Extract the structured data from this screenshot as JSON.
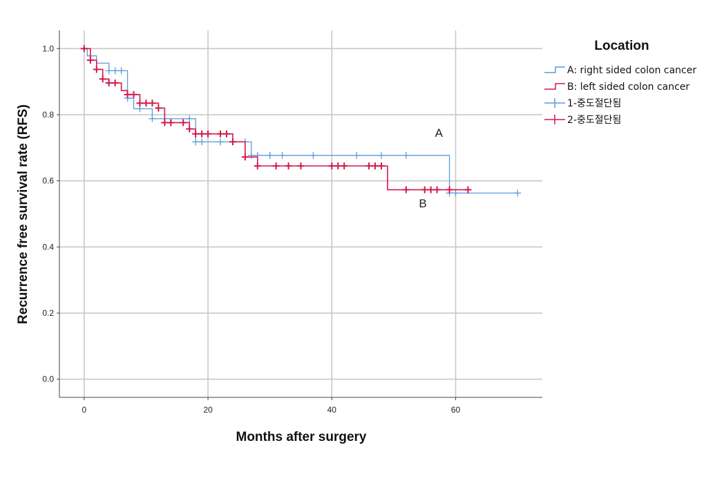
{
  "chart_data": {
    "type": "line",
    "title": "",
    "xlabel": "Months after surgery",
    "ylabel": "Recurrence free survival rate (RFS)",
    "xlim": [
      -4,
      74
    ],
    "ylim": [
      -0.055,
      1.055
    ],
    "x_ticks": [
      0,
      20,
      40,
      60
    ],
    "x_tick_labels": [
      "0",
      "20",
      "40",
      "60"
    ],
    "y_ticks": [
      0.0,
      0.2,
      0.4,
      0.6,
      0.8,
      1.0
    ],
    "y_tick_labels": [
      "0.0",
      "0.2",
      "0.4",
      "0.6",
      "0.8",
      "1.0"
    ],
    "grid": true,
    "legend": {
      "title": "Location",
      "position": "right",
      "entries": [
        {
          "label": "A: right sided colon cancer",
          "kind": "step",
          "color": "#5b9ad8"
        },
        {
          "label": "B: left sided colon cancer",
          "kind": "step",
          "color": "#d3174a"
        },
        {
          "label": "1-중도절단됨",
          "kind": "censor",
          "color": "#5b9ad8"
        },
        {
          "label": "2-중도절단됨",
          "kind": "censor",
          "color": "#d3174a"
        }
      ]
    },
    "annotations": [
      {
        "text": "A",
        "x": 57.3,
        "y": 0.733
      },
      {
        "text": "B",
        "x": 54.7,
        "y": 0.52
      }
    ],
    "series": [
      {
        "name": "A: right sided colon cancer",
        "color": "#5b9ad8",
        "steps": [
          [
            0,
            1.0
          ],
          [
            0.5,
            0.978
          ],
          [
            2,
            0.956
          ],
          [
            4,
            0.933
          ],
          [
            7,
            0.85
          ],
          [
            8,
            0.818
          ],
          [
            11,
            0.788
          ],
          [
            18,
            0.718
          ],
          [
            27,
            0.677
          ],
          [
            59,
            0.563
          ],
          [
            70,
            0.563
          ]
        ],
        "censored": [
          [
            4,
            0.933
          ],
          [
            5,
            0.933
          ],
          [
            6,
            0.933
          ],
          [
            7,
            0.85
          ],
          [
            9,
            0.818
          ],
          [
            11,
            0.788
          ],
          [
            17,
            0.788
          ],
          [
            18,
            0.718
          ],
          [
            19,
            0.718
          ],
          [
            22,
            0.718
          ],
          [
            26,
            0.718
          ],
          [
            27,
            0.677
          ],
          [
            28,
            0.677
          ],
          [
            30,
            0.677
          ],
          [
            30,
            0.677
          ],
          [
            32,
            0.677
          ],
          [
            37,
            0.677
          ],
          [
            44,
            0.677
          ],
          [
            48,
            0.677
          ],
          [
            52,
            0.677
          ],
          [
            59,
            0.563
          ],
          [
            60,
            0.563
          ],
          [
            70,
            0.563
          ]
        ]
      },
      {
        "name": "B: left sided colon cancer",
        "color": "#d3174a",
        "steps": [
          [
            0,
            1.0
          ],
          [
            1,
            0.965
          ],
          [
            2,
            0.937
          ],
          [
            3,
            0.908
          ],
          [
            4,
            0.896
          ],
          [
            6,
            0.873
          ],
          [
            7,
            0.861
          ],
          [
            9,
            0.835
          ],
          [
            12,
            0.82
          ],
          [
            13,
            0.776
          ],
          [
            17,
            0.757
          ],
          [
            18,
            0.742
          ],
          [
            24,
            0.718
          ],
          [
            26,
            0.672
          ],
          [
            28,
            0.645
          ],
          [
            49,
            0.573
          ],
          [
            62,
            0.573
          ]
        ],
        "censored": [
          [
            0,
            1.0
          ],
          [
            1,
            0.965
          ],
          [
            2,
            0.937
          ],
          [
            3,
            0.908
          ],
          [
            4,
            0.896
          ],
          [
            5,
            0.896
          ],
          [
            7,
            0.861
          ],
          [
            8,
            0.861
          ],
          [
            9,
            0.835
          ],
          [
            10,
            0.835
          ],
          [
            11,
            0.835
          ],
          [
            12,
            0.82
          ],
          [
            13,
            0.776
          ],
          [
            14,
            0.776
          ],
          [
            16,
            0.776
          ],
          [
            17,
            0.757
          ],
          [
            18,
            0.742
          ],
          [
            19,
            0.742
          ],
          [
            20,
            0.742
          ],
          [
            22,
            0.742
          ],
          [
            23,
            0.742
          ],
          [
            24,
            0.718
          ],
          [
            26,
            0.672
          ],
          [
            28,
            0.645
          ],
          [
            31,
            0.645
          ],
          [
            33,
            0.645
          ],
          [
            35,
            0.645
          ],
          [
            40,
            0.645
          ],
          [
            41,
            0.645
          ],
          [
            42,
            0.645
          ],
          [
            46,
            0.645
          ],
          [
            47,
            0.645
          ],
          [
            48,
            0.645
          ],
          [
            52,
            0.573
          ],
          [
            55,
            0.573
          ],
          [
            56,
            0.573
          ],
          [
            57,
            0.573
          ],
          [
            59,
            0.573
          ],
          [
            62,
            0.573
          ]
        ]
      }
    ]
  }
}
